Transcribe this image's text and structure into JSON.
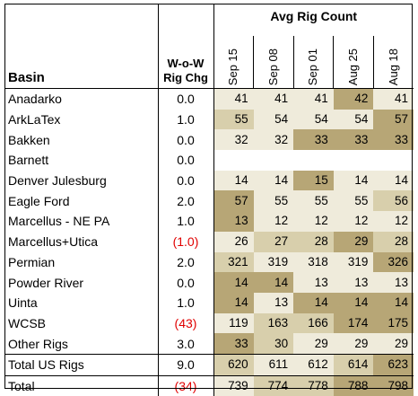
{
  "header": {
    "basin": "Basin",
    "wow_line1": "W-o-W",
    "wow_line2": "Rig Chg",
    "avg_rig_count": "Avg Rig Count",
    "dates": [
      "Sep 15",
      "Sep 08",
      "Sep 01",
      "Aug 25",
      "Aug 18"
    ]
  },
  "colors": {
    "shade_light": "#efebdb",
    "shade_mid": "#d8cfac",
    "shade_dark": "#b7a676",
    "negative_text": "#e00000"
  },
  "rows": [
    {
      "basin": "Anadarko",
      "wow": "0.0",
      "neg": false,
      "vals": [
        "41",
        "41",
        "41",
        "42",
        "41"
      ],
      "shade": [
        "l",
        "l",
        "l",
        "d",
        "l"
      ]
    },
    {
      "basin": "ArkLaTex",
      "wow": "1.0",
      "neg": false,
      "vals": [
        "55",
        "54",
        "54",
        "54",
        "57"
      ],
      "shade": [
        "m",
        "l",
        "l",
        "l",
        "d"
      ]
    },
    {
      "basin": "Bakken",
      "wow": "0.0",
      "neg": false,
      "vals": [
        "32",
        "32",
        "33",
        "33",
        "33"
      ],
      "shade": [
        "l",
        "l",
        "d",
        "d",
        "d"
      ]
    },
    {
      "basin": "Barnett",
      "wow": "0.0",
      "neg": false,
      "vals": [
        "",
        "",
        "",
        "",
        ""
      ],
      "shade": [
        "n",
        "n",
        "n",
        "n",
        "n"
      ]
    },
    {
      "basin": "Denver Julesburg",
      "wow": "0.0",
      "neg": false,
      "vals": [
        "14",
        "14",
        "15",
        "14",
        "14"
      ],
      "shade": [
        "l",
        "l",
        "d",
        "l",
        "l"
      ]
    },
    {
      "basin": "Eagle Ford",
      "wow": "2.0",
      "neg": false,
      "vals": [
        "57",
        "55",
        "55",
        "55",
        "56"
      ],
      "shade": [
        "d",
        "l",
        "l",
        "l",
        "m"
      ]
    },
    {
      "basin": "Marcellus - NE PA",
      "wow": "1.0",
      "neg": false,
      "vals": [
        "13",
        "12",
        "12",
        "12",
        "12"
      ],
      "shade": [
        "d",
        "l",
        "l",
        "l",
        "l"
      ]
    },
    {
      "basin": "Marcellus+Utica",
      "wow": "(1.0)",
      "neg": true,
      "vals": [
        "26",
        "27",
        "28",
        "29",
        "28"
      ],
      "shade": [
        "l",
        "m",
        "m",
        "d",
        "m"
      ]
    },
    {
      "basin": "Permian",
      "wow": "2.0",
      "neg": false,
      "vals": [
        "321",
        "319",
        "318",
        "319",
        "326"
      ],
      "shade": [
        "m",
        "l",
        "l",
        "l",
        "d"
      ]
    },
    {
      "basin": "Powder River",
      "wow": "0.0",
      "neg": false,
      "vals": [
        "14",
        "14",
        "13",
        "13",
        "13"
      ],
      "shade": [
        "d",
        "d",
        "l",
        "l",
        "l"
      ]
    },
    {
      "basin": "Uinta",
      "wow": "1.0",
      "neg": false,
      "vals": [
        "14",
        "13",
        "14",
        "14",
        "14"
      ],
      "shade": [
        "d",
        "l",
        "d",
        "d",
        "d"
      ]
    },
    {
      "basin": "WCSB",
      "wow": "(43)",
      "neg": true,
      "vals": [
        "119",
        "163",
        "166",
        "174",
        "175"
      ],
      "shade": [
        "l",
        "m",
        "m",
        "d",
        "d"
      ]
    },
    {
      "basin": "Other Rigs",
      "wow": "3.0",
      "neg": false,
      "vals": [
        "33",
        "30",
        "29",
        "29",
        "29"
      ],
      "shade": [
        "d",
        "m",
        "l",
        "l",
        "l"
      ]
    }
  ],
  "total_us": {
    "basin": "Total US Rigs",
    "wow": "9.0",
    "neg": false,
    "vals": [
      "620",
      "611",
      "612",
      "614",
      "623"
    ],
    "shade": [
      "m",
      "l",
      "l",
      "m",
      "d"
    ]
  },
  "total": {
    "basin": "Total",
    "wow": "(34)",
    "neg": true,
    "vals": [
      "739",
      "774",
      "778",
      "788",
      "798"
    ],
    "shade": [
      "l",
      "m",
      "m",
      "d",
      "d"
    ]
  }
}
